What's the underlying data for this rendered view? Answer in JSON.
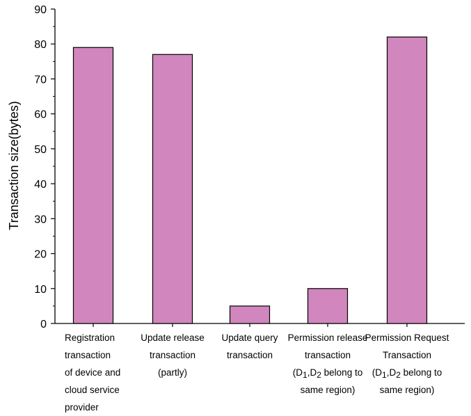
{
  "chart_data": {
    "type": "bar",
    "title": "",
    "xlabel": "",
    "ylabel": "Transaction size(bytes)",
    "ylim": [
      0,
      90
    ],
    "yticks": [
      0,
      10,
      20,
      30,
      40,
      50,
      60,
      70,
      80,
      90
    ],
    "grid": false,
    "bar_color": "#d186bd",
    "categories": [
      [
        "Registration",
        "transaction",
        "of device and",
        "cloud service",
        "provider"
      ],
      [
        "Update release",
        "transaction",
        "(partly)"
      ],
      [
        "Update query",
        "transaction"
      ],
      [
        "Permission release",
        "transaction",
        "(D1,D2 belong to",
        "same region)"
      ],
      [
        "Permission Request",
        "Transaction",
        "(D1,D2 belong to",
        "same region)"
      ]
    ],
    "values": [
      79,
      77,
      5,
      10,
      82
    ]
  }
}
